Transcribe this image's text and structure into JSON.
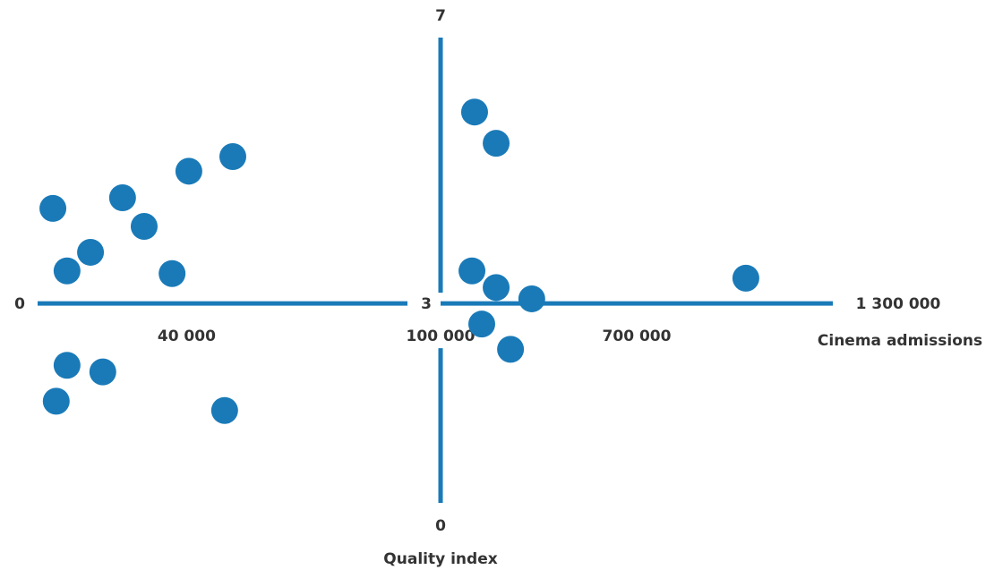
{
  "chart_data": {
    "type": "scatter",
    "x_label": "Cinema admissions",
    "y_label": "Quality index",
    "color": "#1a7ab8",
    "xlim": [
      0,
      1300000
    ],
    "xticks": [
      0,
      {
        "value": 40000,
        "label": "40 000"
      },
      {
        "value": 100000,
        "label": "100 000"
      },
      {
        "value": 700000,
        "label": "700 000"
      },
      {
        "value": 1300000,
        "label": "1 300 000"
      }
    ],
    "ylim": [
      0,
      7
    ],
    "yticks": [
      0,
      3,
      7
    ],
    "x": [
      4100,
      7900,
      14200,
      22800,
      28600,
      36100,
      40600,
      52400,
      7900,
      17500,
      5000,
      50200,
      204000,
      270000,
      196000,
      270000,
      379000,
      226000,
      314000,
      1034000
    ],
    "y": [
      4.43,
      3.49,
      3.77,
      4.59,
      4.16,
      3.45,
      4.99,
      5.21,
      2.07,
      1.97,
      1.53,
      1.39,
      5.88,
      5.41,
      3.49,
      3.24,
      3.07,
      2.69,
      2.31,
      3.38
    ]
  }
}
